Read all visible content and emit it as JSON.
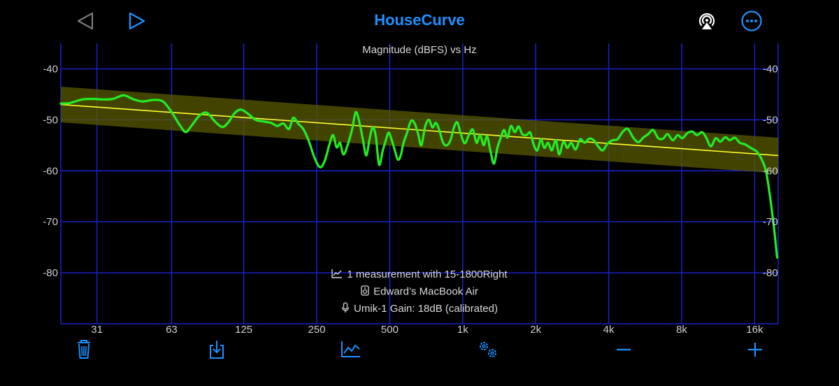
{
  "app": {
    "title": "HouseCurve"
  },
  "colors": {
    "accent": "#1e90ff",
    "grid": "#1a22c8",
    "measurement": "#22ee22",
    "target": "#ffff33",
    "band": "#5a5a00"
  },
  "chart_data": {
    "type": "line",
    "title": "Magnitude (dBFS) vs Hz",
    "xscale": "log",
    "xlim": [
      22,
      20000
    ],
    "ylim": [
      -90,
      -35
    ],
    "grid": true,
    "yticks": [
      -40,
      -50,
      -60,
      -70,
      -80
    ],
    "xticks": [
      {
        "value": 31,
        "label": "31"
      },
      {
        "value": 63,
        "label": "63"
      },
      {
        "value": 125,
        "label": "125"
      },
      {
        "value": 250,
        "label": "250"
      },
      {
        "value": 500,
        "label": "500"
      },
      {
        "value": 1000,
        "label": "1k"
      },
      {
        "value": 2000,
        "label": "2k"
      },
      {
        "value": 4000,
        "label": "4k"
      },
      {
        "value": 8000,
        "label": "8k"
      },
      {
        "value": 16000,
        "label": "16k"
      }
    ],
    "target": {
      "start": [
        22,
        -47.0
      ],
      "end": [
        20000,
        -57.0
      ],
      "band_width_db": 3.5
    },
    "series": [
      {
        "points": [
          [
            22,
            -46.8
          ],
          [
            24,
            -46.7
          ],
          [
            27,
            -46.0
          ],
          [
            30,
            -45.9
          ],
          [
            33,
            -46.0
          ],
          [
            36,
            -45.9
          ],
          [
            40,
            -45.2
          ],
          [
            44,
            -46.0
          ],
          [
            48,
            -46.4
          ],
          [
            53,
            -46.1
          ],
          [
            58,
            -46.4
          ],
          [
            63,
            -48.5
          ],
          [
            68,
            -51.0
          ],
          [
            72,
            -52.4
          ],
          [
            76,
            -51.2
          ],
          [
            82,
            -49.2
          ],
          [
            88,
            -48.6
          ],
          [
            95,
            -50.3
          ],
          [
            102,
            -51.4
          ],
          [
            108,
            -50.5
          ],
          [
            115,
            -48.6
          ],
          [
            122,
            -48.0
          ],
          [
            130,
            -48.8
          ],
          [
            140,
            -50.0
          ],
          [
            150,
            -50.3
          ],
          [
            162,
            -50.6
          ],
          [
            172,
            -51.2
          ],
          [
            182,
            -50.7
          ],
          [
            192,
            -51.8
          ],
          [
            200,
            -49.6
          ],
          [
            210,
            -50.8
          ],
          [
            220,
            -51.8
          ],
          [
            232,
            -54.2
          ],
          [
            245,
            -57.5
          ],
          [
            258,
            -59.3
          ],
          [
            270,
            -58.0
          ],
          [
            282,
            -54.8
          ],
          [
            292,
            -53.0
          ],
          [
            302,
            -55.4
          ],
          [
            312,
            -54.5
          ],
          [
            322,
            -56.8
          ],
          [
            335,
            -55.0
          ],
          [
            350,
            -51.8
          ],
          [
            362,
            -48.5
          ],
          [
            375,
            -50.5
          ],
          [
            388,
            -54.0
          ],
          [
            400,
            -57.0
          ],
          [
            412,
            -54.0
          ],
          [
            425,
            -51.5
          ],
          [
            438,
            -53.2
          ],
          [
            452,
            -58.8
          ],
          [
            468,
            -56.0
          ],
          [
            482,
            -54.0
          ],
          [
            495,
            -52.5
          ],
          [
            510,
            -54.0
          ],
          [
            525,
            -56.0
          ],
          [
            540,
            -57.8
          ],
          [
            555,
            -57.0
          ],
          [
            570,
            -54.5
          ],
          [
            590,
            -52.5
          ],
          [
            612,
            -50.2
          ],
          [
            635,
            -50.8
          ],
          [
            655,
            -52.8
          ],
          [
            675,
            -55.0
          ],
          [
            700,
            -51.3
          ],
          [
            725,
            -50.0
          ],
          [
            750,
            -51.5
          ],
          [
            775,
            -50.6
          ],
          [
            800,
            -52.0
          ],
          [
            830,
            -54.5
          ],
          [
            860,
            -55.0
          ],
          [
            890,
            -54.0
          ],
          [
            920,
            -51.5
          ],
          [
            950,
            -50.5
          ],
          [
            985,
            -53.0
          ],
          [
            1020,
            -54.6
          ],
          [
            1060,
            -53.0
          ],
          [
            1100,
            -51.9
          ],
          [
            1140,
            -54.5
          ],
          [
            1180,
            -53.0
          ],
          [
            1220,
            -55.0
          ],
          [
            1260,
            -53.2
          ],
          [
            1300,
            -56.0
          ],
          [
            1345,
            -58.6
          ],
          [
            1390,
            -55.5
          ],
          [
            1435,
            -53.5
          ],
          [
            1480,
            -52.0
          ],
          [
            1530,
            -53.5
          ],
          [
            1580,
            -51.2
          ],
          [
            1640,
            -52.4
          ],
          [
            1700,
            -51.3
          ],
          [
            1760,
            -52.8
          ],
          [
            1830,
            -53.0
          ],
          [
            1900,
            -52.5
          ],
          [
            1960,
            -54.8
          ],
          [
            2030,
            -56.0
          ],
          [
            2100,
            -53.8
          ],
          [
            2170,
            -55.5
          ],
          [
            2250,
            -54.5
          ],
          [
            2330,
            -56.0
          ],
          [
            2420,
            -54.0
          ],
          [
            2500,
            -56.8
          ],
          [
            2600,
            -54.3
          ],
          [
            2700,
            -55.5
          ],
          [
            2800,
            -54.5
          ],
          [
            2920,
            -55.8
          ],
          [
            3050,
            -53.8
          ],
          [
            3180,
            -54.5
          ],
          [
            3320,
            -53.7
          ],
          [
            3470,
            -54.0
          ],
          [
            3620,
            -55.2
          ],
          [
            3780,
            -56.0
          ],
          [
            3950,
            -54.7
          ],
          [
            4150,
            -54.0
          ],
          [
            4350,
            -53.8
          ],
          [
            4580,
            -52.3
          ],
          [
            4800,
            -51.8
          ],
          [
            5050,
            -53.5
          ],
          [
            5300,
            -54.4
          ],
          [
            5550,
            -53.5
          ],
          [
            5820,
            -52.8
          ],
          [
            6100,
            -52.0
          ],
          [
            6400,
            -53.6
          ],
          [
            6700,
            -53.7
          ],
          [
            7000,
            -52.8
          ],
          [
            7350,
            -54.0
          ],
          [
            7700,
            -53.0
          ],
          [
            8050,
            -53.6
          ],
          [
            8450,
            -52.6
          ],
          [
            8850,
            -52.3
          ],
          [
            9250,
            -53.0
          ],
          [
            9700,
            -52.4
          ],
          [
            10100,
            -53.5
          ],
          [
            10550,
            -55.2
          ],
          [
            11050,
            -53.6
          ],
          [
            11550,
            -54.3
          ],
          [
            12100,
            -53.4
          ],
          [
            12650,
            -54.0
          ],
          [
            13250,
            -53.5
          ],
          [
            13900,
            -54.5
          ],
          [
            14600,
            -54.8
          ],
          [
            15400,
            -55.5
          ],
          [
            16300,
            -56.2
          ],
          [
            17000,
            -57.5
          ],
          [
            17800,
            -60.0
          ],
          [
            18500,
            -65.0
          ],
          [
            19200,
            -71.0
          ],
          [
            19800,
            -77.0
          ]
        ]
      }
    ]
  },
  "info": {
    "measurement": "1 measurement with 15-1800Right",
    "device": "Edward’s MacBook Air",
    "mic": "Umik-1  Gain: 18dB (calibrated)"
  }
}
